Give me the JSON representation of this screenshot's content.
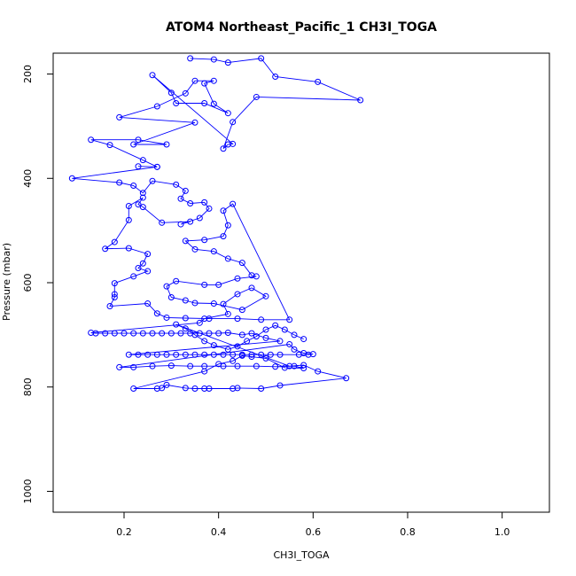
{
  "chart_data": {
    "type": "scatter",
    "title": "ATOM4 Northeast_Pacific_1 CH3I_TOGA",
    "xlabel": "CH3I_TOGA",
    "ylabel": "Pressure (mbar)",
    "xlim": [
      0.05,
      1.1
    ],
    "ylim": [
      1040,
      160
    ],
    "y_reversed": true,
    "xticks": [
      0.2,
      0.4,
      0.6,
      0.8,
      1.0
    ],
    "xtick_labels": [
      "0.2",
      "0.4",
      "0.6",
      "0.8",
      "1.0"
    ],
    "yticks": [
      200,
      400,
      600,
      800,
      1000
    ],
    "ytick_labels": [
      "200",
      "400",
      "600",
      "800",
      "1000"
    ],
    "marker": "open-circle",
    "lines_connect_points": true,
    "grid": false,
    "series_color": "#0000ff",
    "points": [
      [
        0.34,
        170
      ],
      [
        0.39,
        172
      ],
      [
        0.42,
        178
      ],
      [
        0.49,
        170
      ],
      [
        0.52,
        205
      ],
      [
        0.61,
        215
      ],
      [
        0.7,
        250
      ],
      [
        0.48,
        244
      ],
      [
        0.43,
        292
      ],
      [
        0.41,
        343
      ],
      [
        0.42,
        335
      ],
      [
        0.43,
        334
      ],
      [
        0.26,
        202
      ],
      [
        0.3,
        236
      ],
      [
        0.31,
        256
      ],
      [
        0.37,
        256
      ],
      [
        0.42,
        275
      ],
      [
        0.39,
        257
      ],
      [
        0.37,
        218
      ],
      [
        0.39,
        213
      ],
      [
        0.35,
        213
      ],
      [
        0.33,
        237
      ],
      [
        0.27,
        262
      ],
      [
        0.19,
        283
      ],
      [
        0.35,
        293
      ],
      [
        0.22,
        335
      ],
      [
        0.29,
        335
      ],
      [
        0.23,
        326
      ],
      [
        0.13,
        326
      ],
      [
        0.17,
        336
      ],
      [
        0.24,
        365
      ],
      [
        0.27,
        378
      ],
      [
        0.23,
        377
      ],
      [
        0.27,
        378
      ],
      [
        0.09,
        400
      ],
      [
        0.19,
        408
      ],
      [
        0.22,
        414
      ],
      [
        0.24,
        428
      ],
      [
        0.26,
        405
      ],
      [
        0.31,
        412
      ],
      [
        0.33,
        424
      ],
      [
        0.32,
        439
      ],
      [
        0.34,
        448
      ],
      [
        0.37,
        446
      ],
      [
        0.38,
        458
      ],
      [
        0.36,
        476
      ],
      [
        0.32,
        488
      ],
      [
        0.34,
        483
      ],
      [
        0.28,
        485
      ],
      [
        0.24,
        455
      ],
      [
        0.23,
        450
      ],
      [
        0.24,
        437
      ],
      [
        0.21,
        453
      ],
      [
        0.21,
        480
      ],
      [
        0.18,
        522
      ],
      [
        0.16,
        535
      ],
      [
        0.21,
        534
      ],
      [
        0.25,
        545
      ],
      [
        0.24,
        563
      ],
      [
        0.23,
        572
      ],
      [
        0.25,
        578
      ],
      [
        0.22,
        588
      ],
      [
        0.18,
        601
      ],
      [
        0.18,
        622
      ],
      [
        0.18,
        628
      ],
      [
        0.17,
        645
      ],
      [
        0.25,
        640
      ],
      [
        0.27,
        659
      ],
      [
        0.29,
        667
      ],
      [
        0.33,
        668
      ],
      [
        0.38,
        669
      ],
      [
        0.44,
        669
      ],
      [
        0.49,
        671
      ],
      [
        0.55,
        671
      ],
      [
        0.43,
        449
      ],
      [
        0.41,
        462
      ],
      [
        0.42,
        490
      ],
      [
        0.41,
        511
      ],
      [
        0.37,
        518
      ],
      [
        0.33,
        520
      ],
      [
        0.35,
        536
      ],
      [
        0.39,
        540
      ],
      [
        0.42,
        554
      ],
      [
        0.45,
        562
      ],
      [
        0.47,
        586
      ],
      [
        0.48,
        588
      ],
      [
        0.44,
        592
      ],
      [
        0.4,
        604
      ],
      [
        0.37,
        604
      ],
      [
        0.31,
        597
      ],
      [
        0.29,
        607
      ],
      [
        0.3,
        628
      ],
      [
        0.33,
        634
      ],
      [
        0.35,
        639
      ],
      [
        0.39,
        640
      ],
      [
        0.45,
        652
      ],
      [
        0.5,
        626
      ],
      [
        0.47,
        610
      ],
      [
        0.44,
        622
      ],
      [
        0.41,
        641
      ],
      [
        0.42,
        660
      ],
      [
        0.37,
        669
      ],
      [
        0.36,
        677
      ],
      [
        0.13,
        696
      ],
      [
        0.14,
        697
      ],
      [
        0.16,
        697
      ],
      [
        0.18,
        697
      ],
      [
        0.2,
        697
      ],
      [
        0.22,
        697
      ],
      [
        0.24,
        697
      ],
      [
        0.26,
        697
      ],
      [
        0.28,
        697
      ],
      [
        0.3,
        697
      ],
      [
        0.32,
        697
      ],
      [
        0.34,
        697
      ],
      [
        0.36,
        697
      ],
      [
        0.38,
        697
      ],
      [
        0.4,
        697
      ],
      [
        0.42,
        696
      ],
      [
        0.45,
        700
      ],
      [
        0.47,
        697
      ],
      [
        0.5,
        706
      ],
      [
        0.53,
        712
      ],
      [
        0.21,
        738
      ],
      [
        0.23,
        738
      ],
      [
        0.25,
        738
      ],
      [
        0.27,
        738
      ],
      [
        0.29,
        738
      ],
      [
        0.31,
        738
      ],
      [
        0.33,
        738
      ],
      [
        0.35,
        738
      ],
      [
        0.37,
        738
      ],
      [
        0.39,
        738
      ],
      [
        0.41,
        738
      ],
      [
        0.43,
        738
      ],
      [
        0.45,
        738
      ],
      [
        0.47,
        738
      ],
      [
        0.49,
        738
      ],
      [
        0.51,
        738
      ],
      [
        0.53,
        738
      ],
      [
        0.57,
        738
      ],
      [
        0.59,
        738
      ],
      [
        0.6,
        737
      ],
      [
        0.58,
        735
      ],
      [
        0.56,
        728
      ],
      [
        0.55,
        718
      ],
      [
        0.19,
        762
      ],
      [
        0.22,
        762
      ],
      [
        0.26,
        760
      ],
      [
        0.3,
        759
      ],
      [
        0.34,
        760
      ],
      [
        0.37,
        760
      ],
      [
        0.41,
        760
      ],
      [
        0.44,
        760
      ],
      [
        0.48,
        760
      ],
      [
        0.52,
        761
      ],
      [
        0.56,
        760
      ],
      [
        0.58,
        764
      ],
      [
        0.54,
        763
      ],
      [
        0.5,
        745
      ],
      [
        0.47,
        742
      ],
      [
        0.45,
        740
      ],
      [
        0.43,
        750
      ],
      [
        0.4,
        756
      ],
      [
        0.37,
        770
      ],
      [
        0.22,
        803
      ],
      [
        0.27,
        803
      ],
      [
        0.28,
        802
      ],
      [
        0.29,
        796
      ],
      [
        0.33,
        802
      ],
      [
        0.35,
        803
      ],
      [
        0.37,
        803
      ],
      [
        0.38,
        803
      ],
      [
        0.43,
        803
      ],
      [
        0.44,
        802
      ],
      [
        0.49,
        803
      ],
      [
        0.53,
        797
      ],
      [
        0.67,
        783
      ],
      [
        0.61,
        770
      ],
      [
        0.58,
        758
      ],
      [
        0.55,
        760
      ],
      [
        0.31,
        680
      ],
      [
        0.33,
        688
      ],
      [
        0.35,
        700
      ],
      [
        0.37,
        712
      ],
      [
        0.39,
        720
      ],
      [
        0.42,
        728
      ],
      [
        0.44,
        722
      ],
      [
        0.46,
        712
      ],
      [
        0.48,
        703
      ],
      [
        0.5,
        690
      ],
      [
        0.52,
        682
      ],
      [
        0.54,
        690
      ],
      [
        0.56,
        700
      ],
      [
        0.58,
        708
      ]
    ]
  }
}
